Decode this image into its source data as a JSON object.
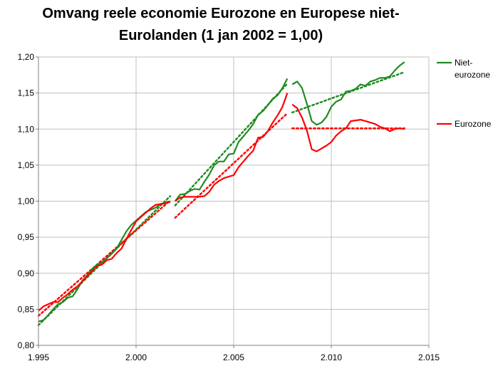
{
  "chart_data": {
    "type": "line",
    "title_line1": "Omvang reele economie Eurozone en Europese niet-",
    "title_line2": "Eurolanden (1 jan 2002 = 1,00)",
    "xlabel": "",
    "ylabel": "",
    "xlim": [
      1995,
      2015
    ],
    "ylim": [
      0.8,
      1.2
    ],
    "x_ticks": [
      1995,
      2000,
      2005,
      2010,
      2015
    ],
    "x_tick_labels": [
      "1.995",
      "2.000",
      "2.005",
      "2.010",
      "2.015"
    ],
    "y_ticks": [
      0.8,
      0.85,
      0.9,
      0.95,
      1.0,
      1.05,
      1.1,
      1.15,
      1.2
    ],
    "y_tick_labels": [
      "0,80",
      "0,85",
      "0,90",
      "0,95",
      "1,00",
      "1,05",
      "1,10",
      "1,15",
      "1,20"
    ],
    "grid": true,
    "legend_position": "right",
    "series": [
      {
        "name_lines": [
          "Niet-",
          "eurozone"
        ],
        "color": "#228B22",
        "style": "solid",
        "segments": [
          {
            "x": [
              1995.0,
              1995.25,
              1995.5,
              1995.75,
              1996.0,
              1996.25,
              1996.5,
              1996.75,
              1997.0,
              1997.25,
              1997.5,
              1997.75,
              1998.0,
              1998.25,
              1998.5,
              1998.75,
              1999.0,
              1999.25,
              1999.5,
              1999.75,
              2000.0,
              2000.25,
              2000.5,
              2000.75,
              2001.0,
              2001.25,
              2001.5,
              2001.75
            ],
            "y": [
              0.833,
              0.835,
              0.842,
              0.85,
              0.857,
              0.86,
              0.866,
              0.868,
              0.878,
              0.89,
              0.897,
              0.906,
              0.912,
              0.915,
              0.921,
              0.927,
              0.934,
              0.946,
              0.958,
              0.967,
              0.973,
              0.979,
              0.985,
              0.988,
              0.991,
              0.996,
              0.998,
              1.0
            ]
          },
          {
            "x": [
              2002.0,
              2002.25,
              2002.5,
              2002.75,
              2003.0,
              2003.25,
              2003.5,
              2003.75,
              2004.0,
              2004.25,
              2004.5,
              2004.75,
              2005.0,
              2005.25,
              2005.5,
              2005.75,
              2006.0,
              2006.25,
              2006.5,
              2006.75,
              2007.0,
              2007.25,
              2007.5,
              2007.75
            ],
            "y": [
              1.0,
              1.009,
              1.01,
              1.014,
              1.017,
              1.016,
              1.027,
              1.037,
              1.05,
              1.055,
              1.055,
              1.065,
              1.066,
              1.082,
              1.09,
              1.098,
              1.107,
              1.12,
              1.125,
              1.133,
              1.142,
              1.147,
              1.157,
              1.17
            ]
          },
          {
            "x": [
              2008.0,
              2008.25,
              2008.5,
              2008.75,
              2009.0,
              2009.25,
              2009.5,
              2009.75,
              2010.0,
              2010.25,
              2010.5,
              2010.75,
              2011.0,
              2011.25,
              2011.5,
              2011.75,
              2012.0,
              2012.25,
              2012.5,
              2012.75,
              2013.0,
              2013.25,
              2013.5,
              2013.75
            ],
            "y": [
              1.162,
              1.166,
              1.157,
              1.135,
              1.111,
              1.106,
              1.109,
              1.117,
              1.131,
              1.138,
              1.141,
              1.152,
              1.153,
              1.156,
              1.162,
              1.16,
              1.166,
              1.168,
              1.171,
              1.171,
              1.173,
              1.181,
              1.188,
              1.193
            ]
          }
        ]
      },
      {
        "name_lines": [
          "Eurozone"
        ],
        "color": "#FF0000",
        "style": "solid",
        "segments": [
          {
            "x": [
              1995.0,
              1995.25,
              1995.5,
              1995.75,
              1996.0,
              1996.25,
              1996.5,
              1996.75,
              1997.0,
              1997.25,
              1997.5,
              1997.75,
              1998.0,
              1998.25,
              1998.5,
              1998.75,
              1999.0,
              1999.25,
              1999.5,
              1999.75,
              2000.0,
              2000.25,
              2000.5,
              2000.75,
              2001.0,
              2001.25,
              2001.5,
              2001.75
            ],
            "y": [
              0.848,
              0.854,
              0.857,
              0.86,
              0.86,
              0.866,
              0.871,
              0.877,
              0.882,
              0.889,
              0.896,
              0.903,
              0.91,
              0.912,
              0.918,
              0.92,
              0.928,
              0.934,
              0.947,
              0.96,
              0.972,
              0.978,
              0.984,
              0.99,
              0.995,
              0.996,
              0.997,
              0.999
            ]
          },
          {
            "x": [
              2002.0,
              2002.25,
              2002.5,
              2002.75,
              2003.0,
              2003.25,
              2003.5,
              2003.75,
              2004.0,
              2004.25,
              2004.5,
              2004.75,
              2005.0,
              2005.25,
              2005.5,
              2005.75,
              2006.0,
              2006.25,
              2006.5,
              2006.75,
              2007.0,
              2007.25,
              2007.5,
              2007.75
            ],
            "y": [
              1.0,
              1.005,
              1.006,
              1.006,
              1.006,
              1.006,
              1.007,
              1.013,
              1.023,
              1.028,
              1.032,
              1.034,
              1.036,
              1.047,
              1.055,
              1.063,
              1.07,
              1.088,
              1.089,
              1.097,
              1.109,
              1.119,
              1.131,
              1.15
            ]
          },
          {
            "x": [
              2008.0,
              2008.25,
              2008.5,
              2008.75,
              2009.0,
              2009.25,
              2009.5,
              2009.75,
              2010.0,
              2010.25,
              2010.5,
              2010.75,
              2011.0,
              2011.25,
              2011.5,
              2011.75,
              2012.0,
              2012.25,
              2012.5,
              2012.75,
              2013.0,
              2013.25,
              2013.5,
              2013.75
            ],
            "y": [
              1.134,
              1.129,
              1.116,
              1.098,
              1.072,
              1.069,
              1.073,
              1.077,
              1.082,
              1.091,
              1.097,
              1.101,
              1.111,
              1.112,
              1.113,
              1.111,
              1.109,
              1.107,
              1.103,
              1.101,
              1.097,
              1.1,
              1.101,
              1.1
            ]
          }
        ]
      }
    ],
    "trendlines": [
      {
        "series": "Niet-eurozone",
        "color": "#228B22",
        "style": "dotted",
        "segments": [
          {
            "x": [
              1995.0,
              2001.75
            ],
            "y": [
              0.828,
              1.007
            ]
          },
          {
            "x": [
              2002.0,
              2007.75
            ],
            "y": [
              0.994,
              1.163
            ]
          },
          {
            "x": [
              2008.0,
              2013.75
            ],
            "y": [
              1.123,
              1.179
            ]
          }
        ]
      },
      {
        "series": "Eurozone",
        "color": "#FF0000",
        "style": "dotted",
        "segments": [
          {
            "x": [
              1995.0,
              2001.75
            ],
            "y": [
              0.841,
              1.001
            ]
          },
          {
            "x": [
              2002.0,
              2007.75
            ],
            "y": [
              0.977,
              1.122
            ]
          },
          {
            "x": [
              2008.0,
              2013.75
            ],
            "y": [
              1.101,
              1.101
            ]
          }
        ]
      }
    ]
  }
}
